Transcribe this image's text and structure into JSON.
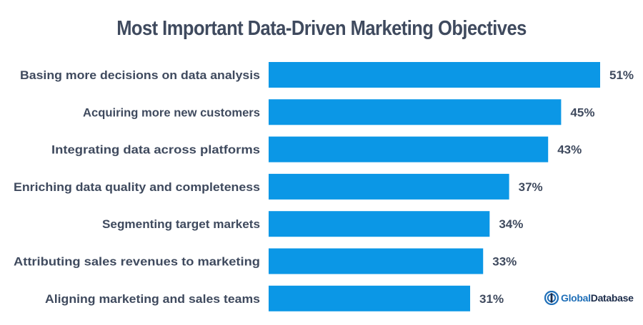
{
  "chart_data": {
    "type": "bar",
    "orientation": "horizontal",
    "title": "Most Important Data-Driven Marketing Objectives",
    "categories": [
      "Basing more decisions on data analysis",
      "Acquiring more new customers",
      "Integrating data across platforms",
      "Enriching data quality and completeness",
      "Segmenting target markets",
      "Attributing sales revenues to marketing",
      "Aligning marketing and sales teams"
    ],
    "values": [
      51,
      45,
      43,
      37,
      34,
      33,
      31
    ],
    "value_labels": [
      "51%",
      "45%",
      "43%",
      "37%",
      "34%",
      "33%",
      "31%"
    ],
    "unit": "%",
    "xlim": [
      0,
      51
    ],
    "bar_color": "#0b97e6",
    "grid": false,
    "legend": "none"
  },
  "branding": {
    "logo_word1": "Global",
    "logo_word2": "Database",
    "logo_color": "#1f6fb8"
  }
}
